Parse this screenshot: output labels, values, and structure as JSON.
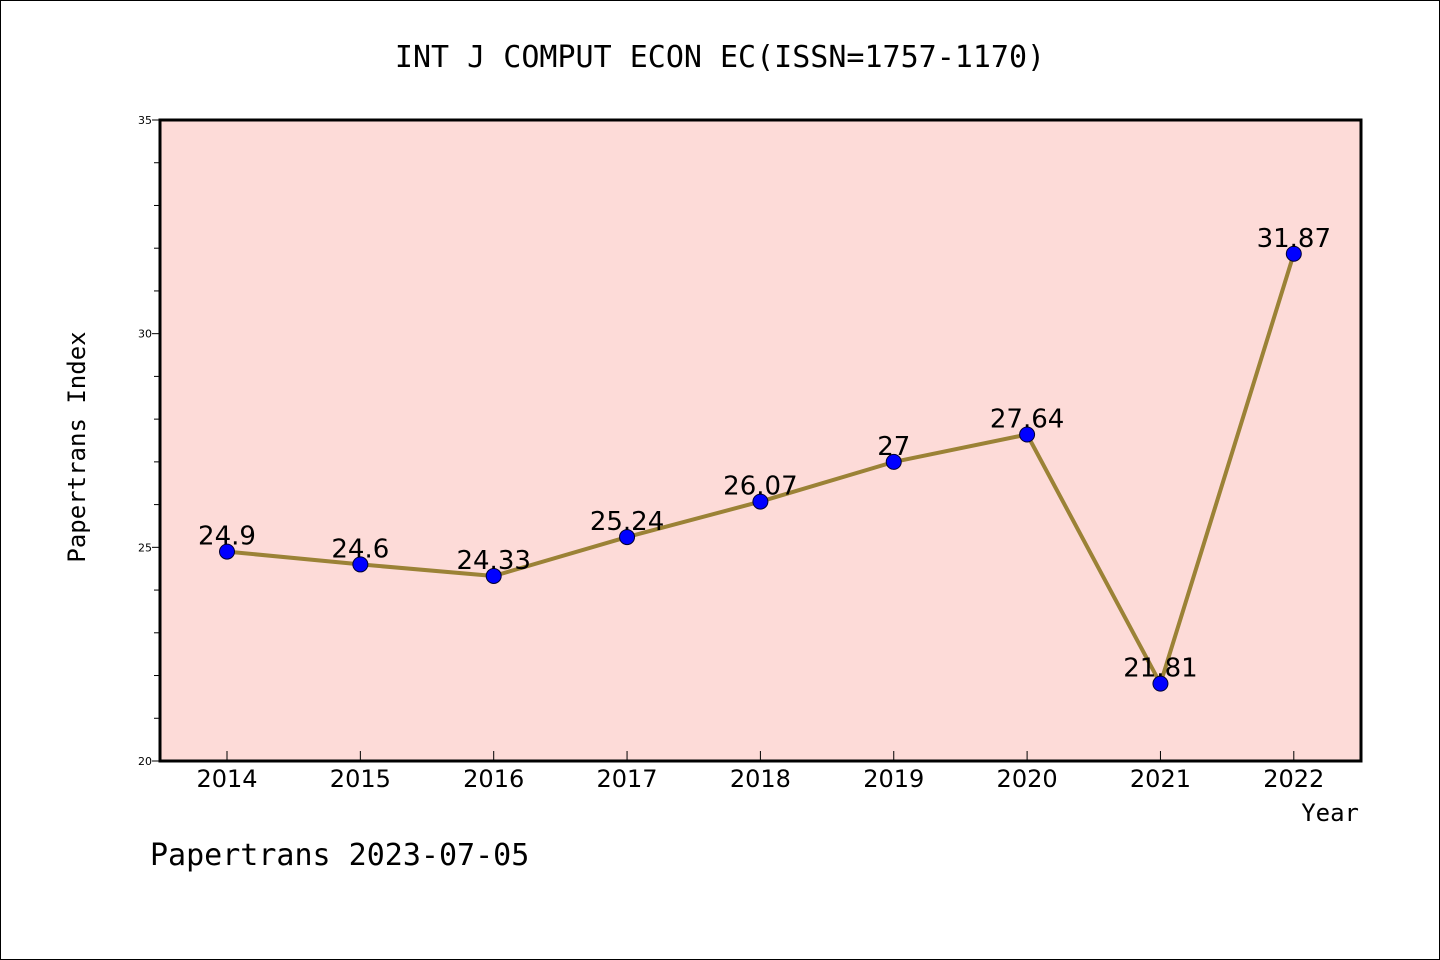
{
  "chart_data": {
    "type": "line",
    "title": "INT J COMPUT ECON EC(ISSN=1757-1170)",
    "xlabel": "Year",
    "ylabel": "Papertrans Index",
    "categories": [
      "2014",
      "2015",
      "2016",
      "2017",
      "2018",
      "2019",
      "2020",
      "2021",
      "2022"
    ],
    "values": [
      24.9,
      24.6,
      24.33,
      25.24,
      26.07,
      27,
      27.64,
      21.81,
      31.87
    ],
    "data_labels": [
      "24.9",
      "24.6",
      "24.33",
      "25.24",
      "26.07",
      "27",
      "27.64",
      "21.81",
      "31.87"
    ],
    "ylim": [
      20,
      35
    ],
    "yticks": [
      "20",
      "25",
      "30",
      "35"
    ],
    "grid": false,
    "colors": {
      "plot_background": "#fddbd8",
      "line": "#9b8236",
      "marker": "#0000ff"
    }
  },
  "footer": "Papertrans 2023-07-05"
}
